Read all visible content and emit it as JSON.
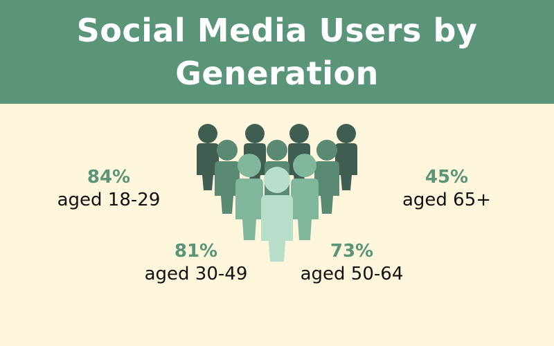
{
  "title": "Social Media Users by Generation",
  "colors": {
    "background": "#fdf5dc",
    "banner": "#5a957a",
    "accent": "#5a957a",
    "figure_dark": "#3f5e51",
    "figure_mid": "#5a8a74",
    "figure_light": "#7fb69c",
    "figure_lightest": "#b7ddcb"
  },
  "chart_data": {
    "type": "pictograph",
    "title": "Social Media Users by Generation",
    "categories": [
      "aged 18-29",
      "aged 30-49",
      "aged 50-64",
      "aged 65+"
    ],
    "values": [
      84,
      81,
      73,
      45
    ],
    "value_labels": [
      "84%",
      "81%",
      "73%",
      "45%"
    ],
    "unit": "%"
  }
}
